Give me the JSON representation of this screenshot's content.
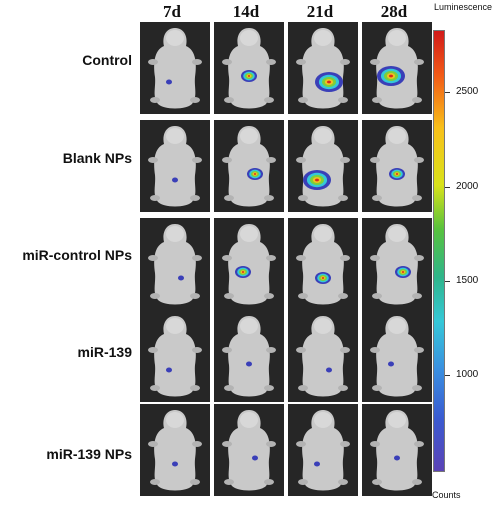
{
  "columns": [
    "7d",
    "14d",
    "21d",
    "28d"
  ],
  "rows": [
    {
      "label": "Control"
    },
    {
      "label": "Blank NPs"
    },
    {
      "label": "miR-control NPs"
    },
    {
      "label": "miR-139"
    },
    {
      "label": "miR-139 NPs"
    }
  ],
  "scale": {
    "title": "Luminescence",
    "unit": "Counts",
    "ticks": [
      "2500",
      "2000",
      "1500",
      "1000"
    ]
  },
  "signal": [
    [
      "low",
      "medium",
      "high",
      "high"
    ],
    [
      "low",
      "medium",
      "high",
      "medium"
    ],
    [
      "low",
      "medium",
      "medium",
      "medium"
    ],
    [
      "low",
      "low",
      "low",
      "low"
    ],
    [
      "low",
      "low",
      "low",
      "low"
    ]
  ]
}
